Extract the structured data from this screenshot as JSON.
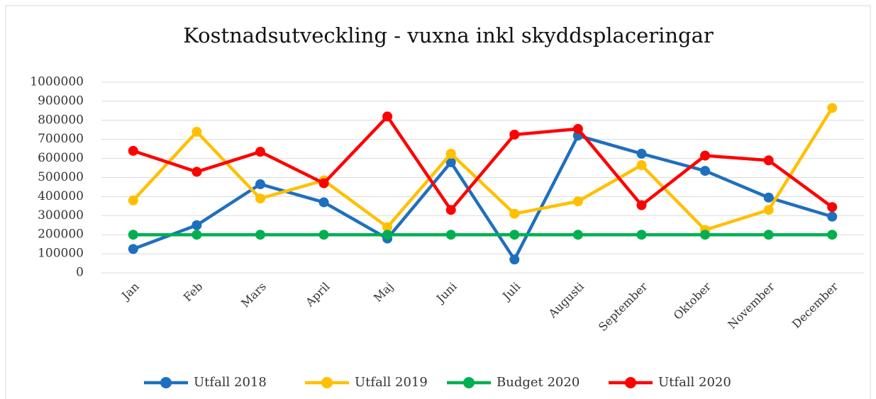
{
  "chart_data": {
    "type": "line",
    "title": "Kostnadsutveckling - vuxna inkl skyddsplaceringar",
    "categories": [
      "Jan",
      "Feb",
      "Mars",
      "April",
      "Maj",
      "Juni",
      "Juli",
      "Augusti",
      "September",
      "Oktober",
      "November",
      "December"
    ],
    "series": [
      {
        "name": "Utfall 2018",
        "color": "#1f6fbf",
        "values": [
          125000,
          250000,
          465000,
          370000,
          180000,
          580000,
          70000,
          720000,
          625000,
          535000,
          395000,
          295000
        ]
      },
      {
        "name": "Utfall 2019",
        "color": "#ffc000",
        "values": [
          380000,
          740000,
          390000,
          485000,
          240000,
          625000,
          310000,
          375000,
          565000,
          225000,
          330000,
          865000
        ]
      },
      {
        "name": "Budget 2020",
        "color": "#00b050",
        "values": [
          200000,
          200000,
          200000,
          200000,
          200000,
          200000,
          200000,
          200000,
          200000,
          200000,
          200000,
          200000
        ]
      },
      {
        "name": "Utfall 2020",
        "color": "#ff0000",
        "values": [
          640000,
          530000,
          635000,
          470000,
          820000,
          330000,
          725000,
          755000,
          355000,
          615000,
          590000,
          345000
        ]
      }
    ],
    "ylim": [
      0,
      1000000
    ],
    "yticks": [
      0,
      100000,
      200000,
      300000,
      400000,
      500000,
      600000,
      700000,
      800000,
      900000,
      1000000
    ],
    "grid": true,
    "legend": "bottom"
  }
}
